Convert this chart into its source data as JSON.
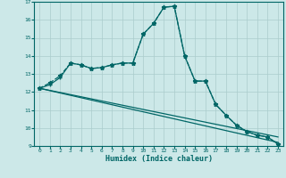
{
  "xlabel": "Humidex (Indice chaleur)",
  "background_color": "#cce8e8",
  "grid_color": "#aacccc",
  "line_color": "#006666",
  "xlim": [
    -0.5,
    23.5
  ],
  "ylim": [
    9,
    17
  ],
  "xticks": [
    0,
    1,
    2,
    3,
    4,
    5,
    6,
    7,
    8,
    9,
    10,
    11,
    12,
    13,
    14,
    15,
    16,
    17,
    18,
    19,
    20,
    21,
    22,
    23
  ],
  "yticks": [
    9,
    10,
    11,
    12,
    13,
    14,
    15,
    16,
    17
  ],
  "line1_x": [
    0,
    1,
    2,
    3,
    4,
    5,
    6,
    7,
    8,
    9,
    10,
    11,
    12,
    13,
    14,
    15,
    16,
    17,
    18,
    19,
    20,
    21,
    22,
    23
  ],
  "line1_y": [
    12.2,
    12.5,
    12.9,
    13.6,
    13.5,
    13.3,
    13.35,
    13.5,
    13.6,
    13.6,
    15.2,
    15.8,
    16.7,
    16.75,
    14.0,
    12.6,
    12.6,
    11.3,
    10.7,
    10.15,
    9.8,
    9.6,
    9.5,
    9.1
  ],
  "line2_x": [
    0,
    1,
    2,
    3,
    4,
    5,
    6,
    7,
    8,
    9,
    10,
    11,
    12,
    13,
    14,
    15,
    16,
    17,
    18,
    19,
    20,
    21,
    22,
    23
  ],
  "line2_y": [
    12.2,
    12.4,
    12.8,
    13.6,
    13.5,
    13.3,
    13.35,
    13.5,
    13.6,
    13.6,
    15.2,
    15.8,
    16.7,
    16.75,
    14.0,
    12.6,
    12.6,
    11.3,
    10.7,
    10.15,
    9.8,
    9.6,
    9.5,
    9.1
  ],
  "line3_x": [
    0,
    23
  ],
  "line3_y": [
    12.2,
    9.5
  ],
  "line4_x": [
    0,
    23
  ],
  "line4_y": [
    12.2,
    9.2
  ]
}
